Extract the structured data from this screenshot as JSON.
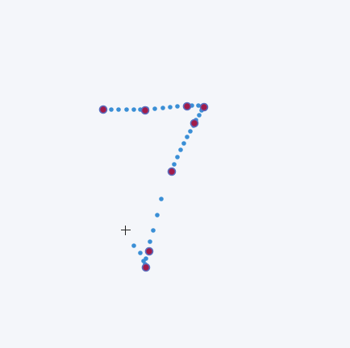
{
  "canvas": {
    "background_color": "#f4f6fa",
    "trail_dot_color": "#3a8fd6",
    "keypoint_fill_color": "#a11b4a",
    "keypoint_stroke_color": "#5b6fbf"
  },
  "cursor": {
    "icon": "crosshair-icon"
  }
}
